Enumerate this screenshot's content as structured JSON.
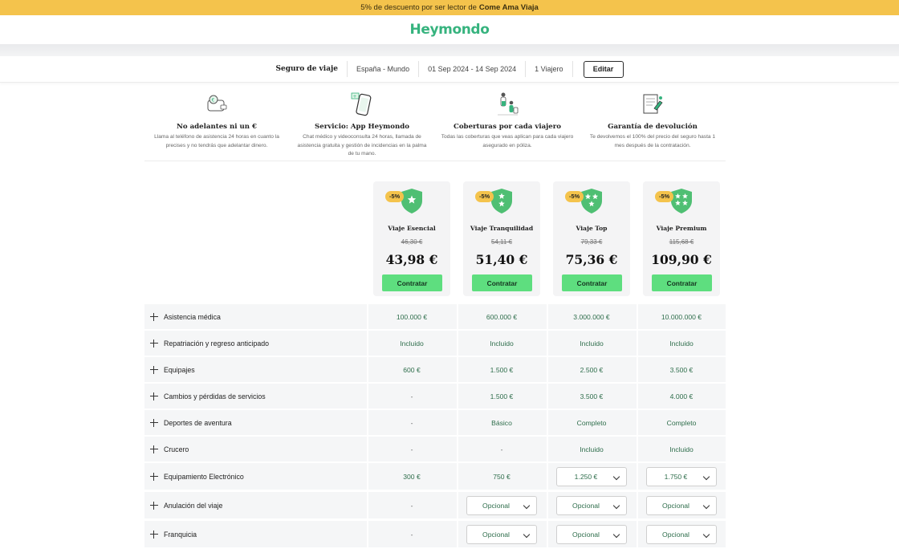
{
  "promo": {
    "text": "5% de descuento por ser lector de",
    "brand": "Come Ama Viaja"
  },
  "header": {
    "logo": "Heymondo"
  },
  "summary": {
    "title": "Seguro de viaje",
    "destination": "España - Mundo",
    "dates": "01 Sep 2024 - 14 Sep 2024",
    "travelers": "1 Viajero",
    "edit_label": "Editar"
  },
  "features": [
    {
      "icon": "wallet-money-icon",
      "title": "No adelantes ni un €",
      "text": "Llama al teléfono de asistencia 24 horas en cuanto la precises y no tendrás que adelantar dinero."
    },
    {
      "icon": "phone-app-icon",
      "title": "Servicio: App Heymondo",
      "text": "Chat médico y videoconsulta 24 horas, llamada de asistencia gratuita y gestión de incidencias en la palma de tu mano."
    },
    {
      "icon": "travelers-icon",
      "title": "Coberturas por cada viajero",
      "text": "Todas las coberturas que veas aplican para cada viajero asegurado en póliza."
    },
    {
      "icon": "refund-document-icon",
      "title": "Garantía de devolución",
      "text": "Te devolvemos el 100% del precio del seguro hasta 1 mes después de la contratación."
    }
  ],
  "plans": [
    {
      "badge": "-5%",
      "name": "Viaje Esencial",
      "old_price": "46,30 €",
      "price": "43,98 €",
      "cta": "Contratar",
      "stars": 1
    },
    {
      "badge": "-5%",
      "name": "Viaje Tranquilidad",
      "old_price": "54,11 €",
      "price": "51,40 €",
      "cta": "Contratar",
      "stars": 2
    },
    {
      "badge": "-5%",
      "name": "Viaje Top",
      "old_price": "79,33 €",
      "price": "75,36 €",
      "cta": "Contratar",
      "stars": 3
    },
    {
      "badge": "-5%",
      "name": "Viaje Premium",
      "old_price": "115,68 €",
      "price": "109,90 €",
      "cta": "Contratar",
      "stars": 4
    }
  ],
  "coverages": [
    {
      "name": "Asistencia médica",
      "values": [
        "100.000 €",
        "600.000 €",
        "3.000.000 €",
        "10.000.000 €"
      ]
    },
    {
      "name": "Repatriación y regreso anticipado",
      "values": [
        "Incluido",
        "Incluido",
        "Incluido",
        "Incluido"
      ]
    },
    {
      "name": "Equipajes",
      "values": [
        "600 €",
        "1.500 €",
        "2.500 €",
        "3.500 €"
      ]
    },
    {
      "name": "Cambios y pérdidas de servicios",
      "values": [
        "-",
        "1.500 €",
        "3.500 €",
        "4.000 €"
      ]
    },
    {
      "name": "Deportes de aventura",
      "values": [
        "-",
        "Básico",
        "Completo",
        "Completo"
      ]
    },
    {
      "name": "Crucero",
      "values": [
        "-",
        "-",
        "Incluido",
        "Incluido"
      ]
    },
    {
      "name": "Equipamiento Electrónico",
      "values": [
        "300 €",
        "750 €",
        "1.250 €",
        "1.750 €"
      ],
      "selects": [
        false,
        false,
        true,
        true
      ]
    },
    {
      "name": "Anulación del viaje",
      "values": [
        "-",
        "Opcional",
        "Opcional",
        "Opcional"
      ],
      "selects": [
        false,
        true,
        true,
        true
      ]
    },
    {
      "name": "Franquicia",
      "values": [
        "-",
        "Opcional",
        "Opcional",
        "Opcional"
      ],
      "selects": [
        false,
        true,
        true,
        true
      ]
    }
  ],
  "colors": {
    "accent": "#36b37e",
    "promo": "#f4c34c",
    "button": "#5ede7f",
    "shield": "#4fbf73"
  }
}
